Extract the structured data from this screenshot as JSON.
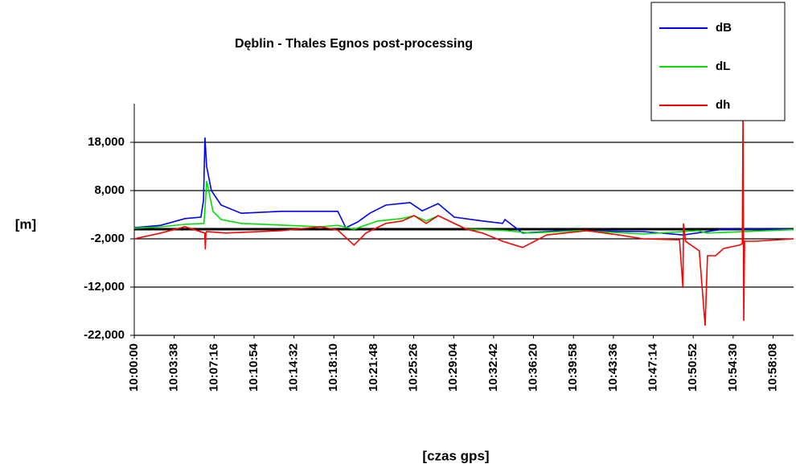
{
  "chart_data": {
    "type": "line",
    "title": "Dęblin - Thales Egnos post-processing",
    "ylabel": "[m]",
    "xlabel": "[czas gps]",
    "xlim": [
      0,
      3600
    ],
    "xticks": [
      {
        "value": 0,
        "label": "10:00:00"
      },
      {
        "value": 218,
        "label": "10:03:38"
      },
      {
        "value": 436,
        "label": "10:07:16"
      },
      {
        "value": 654,
        "label": "10:10:54"
      },
      {
        "value": 872,
        "label": "10:14:32"
      },
      {
        "value": 1090,
        "label": "10:18:10"
      },
      {
        "value": 1308,
        "label": "10:21:48"
      },
      {
        "value": 1526,
        "label": "10:25:26"
      },
      {
        "value": 1744,
        "label": "10:29:04"
      },
      {
        "value": 1962,
        "label": "10:32:42"
      },
      {
        "value": 2180,
        "label": "10:36:20"
      },
      {
        "value": 2398,
        "label": "10:39:58"
      },
      {
        "value": 2616,
        "label": "10:43:36"
      },
      {
        "value": 2834,
        "label": "10:47:14"
      },
      {
        "value": 3052,
        "label": "10:50:52"
      },
      {
        "value": 3270,
        "label": "10:54:30"
      },
      {
        "value": 3488,
        "label": "10:58:08"
      }
    ],
    "ylim": [
      -22000,
      26000
    ],
    "yticks": [
      {
        "value": -22000,
        "label": "-22,000"
      },
      {
        "value": -12000,
        "label": "-12,000"
      },
      {
        "value": -2000,
        "label": "-2,000"
      },
      {
        "value": 8000,
        "label": "8,000"
      },
      {
        "value": 18000,
        "label": "18,000"
      }
    ],
    "grid": true,
    "legend": "top-right",
    "series": [
      {
        "name": "dB",
        "color": "#0000ff",
        "x": [
          0,
          145,
          277,
          364,
          378,
          386,
          395,
          421,
          474,
          584,
          803,
          1111,
          1155,
          1220,
          1286,
          1374,
          1506,
          1572,
          1659,
          1747,
          1901,
          2011,
          2024,
          2120,
          2340,
          2779,
          2998,
          3218,
          3600
        ],
        "values": [
          300,
          800,
          2200,
          2500,
          6000,
          19000,
          13000,
          8000,
          5000,
          3300,
          3700,
          3700,
          300,
          1500,
          3300,
          5000,
          5500,
          3800,
          5300,
          2500,
          1700,
          1200,
          2000,
          -800,
          -300,
          -500,
          -1200,
          0,
          0
        ]
      },
      {
        "name": "dL",
        "color": "#00e000",
        "x": [
          0,
          145,
          277,
          380,
          386,
          395,
          430,
          474,
          584,
          1018,
          1111,
          1200,
          1330,
          1462,
          1528,
          1594,
          1659,
          1813,
          2033,
          2164,
          2428,
          2779,
          3080,
          3125,
          3600
        ],
        "values": [
          200,
          500,
          1000,
          1200,
          4000,
          10000,
          3700,
          2000,
          1200,
          500,
          800,
          0,
          1700,
          2200,
          2800,
          1700,
          2800,
          0,
          -300,
          -800,
          -300,
          -1000,
          -300,
          -800,
          -100
        ]
      },
      {
        "name": "dh",
        "color": "#ff0000",
        "x": [
          0,
          145,
          277,
          385,
          388,
          391,
          395,
          498,
          803,
          1018,
          1111,
          1200,
          1265,
          1374,
          1462,
          1528,
          1594,
          1659,
          1813,
          1901,
          2011,
          2120,
          2252,
          2472,
          2647,
          2779,
          2977,
          2996,
          2999,
          3010,
          3085,
          3117,
          3130,
          3174,
          3218,
          3306,
          3320,
          3324,
          3328,
          3332,
          3390,
          3600
        ],
        "values": [
          -2000,
          -800,
          500,
          -800,
          -4200,
          -800,
          -500,
          -800,
          -300,
          500,
          -200,
          -3300,
          -800,
          1200,
          1700,
          2800,
          1200,
          2800,
          0,
          -800,
          -2500,
          -3800,
          -1200,
          -300,
          -1200,
          -2000,
          -2200,
          -12200,
          1200,
          -2500,
          -4500,
          -20000,
          -5500,
          -5500,
          -4000,
          -3300,
          -3000,
          25000,
          -19000,
          -2500,
          -2500,
          -2000
        ]
      }
    ]
  }
}
